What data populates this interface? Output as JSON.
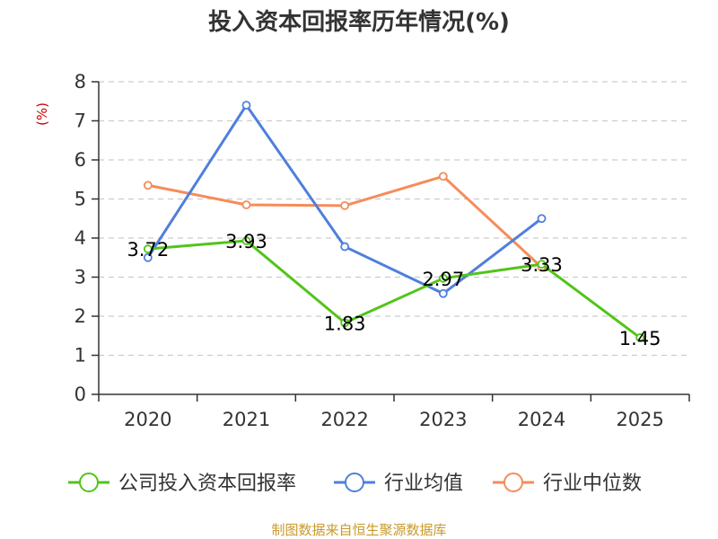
{
  "chart_data": {
    "type": "line",
    "title": "投入资本回报率历年情况(%)",
    "ylabel": "(%)",
    "xlabel": "",
    "categories": [
      "2020",
      "2021",
      "2022",
      "2023",
      "2024",
      "2025"
    ],
    "ylim": [
      0,
      8
    ],
    "yticks": [
      0,
      1,
      2,
      3,
      4,
      5,
      6,
      7,
      8
    ],
    "grid": true,
    "legend_position": "bottom",
    "series": [
      {
        "name": "公司投入资本回报率",
        "color": "#52c41a",
        "values": [
          3.72,
          3.93,
          1.83,
          2.97,
          3.33,
          1.45
        ],
        "labels": [
          "3.72",
          "3.93",
          "1.83",
          "2.97",
          "3.33",
          "1.45"
        ]
      },
      {
        "name": "行业均值",
        "color": "#4f7fdc",
        "values": [
          3.5,
          7.4,
          3.78,
          2.58,
          4.5,
          null
        ]
      },
      {
        "name": "行业中位数",
        "color": "#f58c5a",
        "values": [
          5.35,
          4.85,
          4.83,
          5.58,
          3.25,
          null
        ]
      }
    ],
    "source": "制图数据来自恒生聚源数据库"
  }
}
